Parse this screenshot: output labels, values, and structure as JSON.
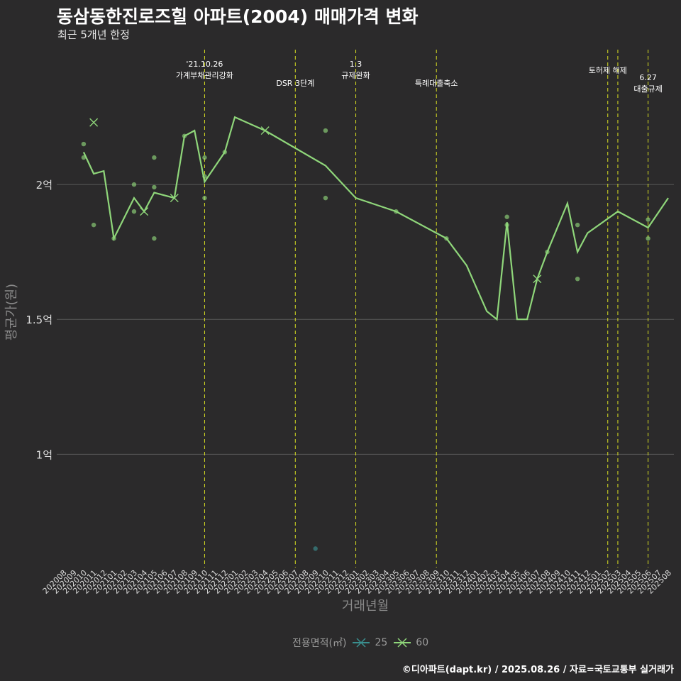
{
  "header": {
    "title": "동삼동한진로즈힐 아파트(2004) 매매가격 변화",
    "subtitle": "최근 5개년 한정"
  },
  "caption": "©디아파트(dapt.kr) / 2025.08.26 / 자료=국토교통부 실거래가",
  "legend": {
    "title": "전용면적(㎡)",
    "items": [
      {
        "label": "25",
        "color": "#3a8f8f"
      },
      {
        "label": "60",
        "color": "#8fd67a"
      }
    ]
  },
  "chart_data": {
    "type": "line",
    "xlabel": "거래년월",
    "ylabel": "평균가(원)",
    "ylim": [
      0.58,
      2.5
    ],
    "yticks": [
      {
        "value": 1.0,
        "label": "1억"
      },
      {
        "value": 1.5,
        "label": "1.5억"
      },
      {
        "value": 2.0,
        "label": "2억"
      }
    ],
    "categories": [
      "202008",
      "202009",
      "202010",
      "202011",
      "202012",
      "202101",
      "202102",
      "202103",
      "202104",
      "202105",
      "202106",
      "202107",
      "202108",
      "202109",
      "202110",
      "202111",
      "202112",
      "202201",
      "202202",
      "202203",
      "202204",
      "202205",
      "202206",
      "202207",
      "202208",
      "202209",
      "202210",
      "202211",
      "202212",
      "202301",
      "202302",
      "202303",
      "202304",
      "202305",
      "202306",
      "202307",
      "202308",
      "202309",
      "202310",
      "202311",
      "202312",
      "202401",
      "202402",
      "202403",
      "202404",
      "202405",
      "202406",
      "202407",
      "202408",
      "202409",
      "202410",
      "202411",
      "202412",
      "202501",
      "202502",
      "202503",
      "202504",
      "202505",
      "202506",
      "202507",
      "202508"
    ],
    "events": [
      {
        "month": "202110",
        "label": "'21.10.26\n가계부채관리강화",
        "level": 0
      },
      {
        "month": "202207",
        "label": "DSR 3단계",
        "level": 1
      },
      {
        "month": "202301",
        "label": "1.3\n규제완화",
        "level": 0
      },
      {
        "month": "202309",
        "label": "특례대출축소",
        "level": 1
      },
      {
        "month": "202502",
        "label": "토허제 해제",
        "level": 0
      },
      {
        "month": "202503",
        "label": "",
        "level": 0
      },
      {
        "month": "202506",
        "label": "6.27\n대출규제",
        "level": 2
      }
    ],
    "series": [
      {
        "name": "25",
        "color": "#3a8f8f",
        "line": [],
        "points": [
          {
            "x": "202209",
            "y": 0.65
          }
        ]
      },
      {
        "name": "60",
        "color": "#8fd67a",
        "line": [
          {
            "x": "202010",
            "y": 2.12
          },
          {
            "x": "202011",
            "y": 2.04
          },
          {
            "x": "202012",
            "y": 2.05
          },
          {
            "x": "202101",
            "y": 1.8
          },
          {
            "x": "202103",
            "y": 1.95
          },
          {
            "x": "202104",
            "y": 1.9
          },
          {
            "x": "202105",
            "y": 1.97
          },
          {
            "x": "202107",
            "y": 1.95
          },
          {
            "x": "202108",
            "y": 2.18
          },
          {
            "x": "202109",
            "y": 2.2
          },
          {
            "x": "202110",
            "y": 2.01
          },
          {
            "x": "202112",
            "y": 2.12
          },
          {
            "x": "202201",
            "y": 2.25
          },
          {
            "x": "202204",
            "y": 2.2
          },
          {
            "x": "202210",
            "y": 2.07
          },
          {
            "x": "202301",
            "y": 1.95
          },
          {
            "x": "202305",
            "y": 1.9
          },
          {
            "x": "202310",
            "y": 1.8
          },
          {
            "x": "202312",
            "y": 1.7
          },
          {
            "x": "202402",
            "y": 1.53
          },
          {
            "x": "202403",
            "y": 1.5
          },
          {
            "x": "202404",
            "y": 1.86
          },
          {
            "x": "202405",
            "y": 1.5
          },
          {
            "x": "202406",
            "y": 1.5
          },
          {
            "x": "202407",
            "y": 1.65
          },
          {
            "x": "202408",
            "y": 1.75
          },
          {
            "x": "202410",
            "y": 1.93
          },
          {
            "x": "202411",
            "y": 1.75
          },
          {
            "x": "202412",
            "y": 1.82
          },
          {
            "x": "202503",
            "y": 1.9
          },
          {
            "x": "202506",
            "y": 1.84
          },
          {
            "x": "202508",
            "y": 1.95
          }
        ],
        "points": [
          {
            "x": "202010",
            "y": 2.15
          },
          {
            "x": "202010",
            "y": 2.1
          },
          {
            "x": "202011",
            "y": 1.85
          },
          {
            "x": "202101",
            "y": 1.8
          },
          {
            "x": "202103",
            "y": 2.0
          },
          {
            "x": "202103",
            "y": 1.9
          },
          {
            "x": "202105",
            "y": 2.1
          },
          {
            "x": "202105",
            "y": 1.99
          },
          {
            "x": "202105",
            "y": 1.8
          },
          {
            "x": "202108",
            "y": 2.18
          },
          {
            "x": "202110",
            "y": 2.1
          },
          {
            "x": "202110",
            "y": 2.03
          },
          {
            "x": "202110",
            "y": 1.95
          },
          {
            "x": "202112",
            "y": 2.12
          },
          {
            "x": "202210",
            "y": 2.2
          },
          {
            "x": "202210",
            "y": 1.95
          },
          {
            "x": "202305",
            "y": 1.9
          },
          {
            "x": "202310",
            "y": 1.8
          },
          {
            "x": "202404",
            "y": 1.88
          },
          {
            "x": "202404",
            "y": 1.85
          },
          {
            "x": "202408",
            "y": 1.75
          },
          {
            "x": "202411",
            "y": 1.85
          },
          {
            "x": "202411",
            "y": 1.65
          },
          {
            "x": "202506",
            "y": 1.87
          },
          {
            "x": "202506",
            "y": 1.8
          }
        ],
        "crosses": [
          {
            "x": "202011",
            "y": 2.23
          },
          {
            "x": "202104",
            "y": 1.9
          },
          {
            "x": "202107",
            "y": 1.95
          },
          {
            "x": "202204",
            "y": 2.2
          },
          {
            "x": "202407",
            "y": 1.65
          }
        ]
      }
    ]
  }
}
